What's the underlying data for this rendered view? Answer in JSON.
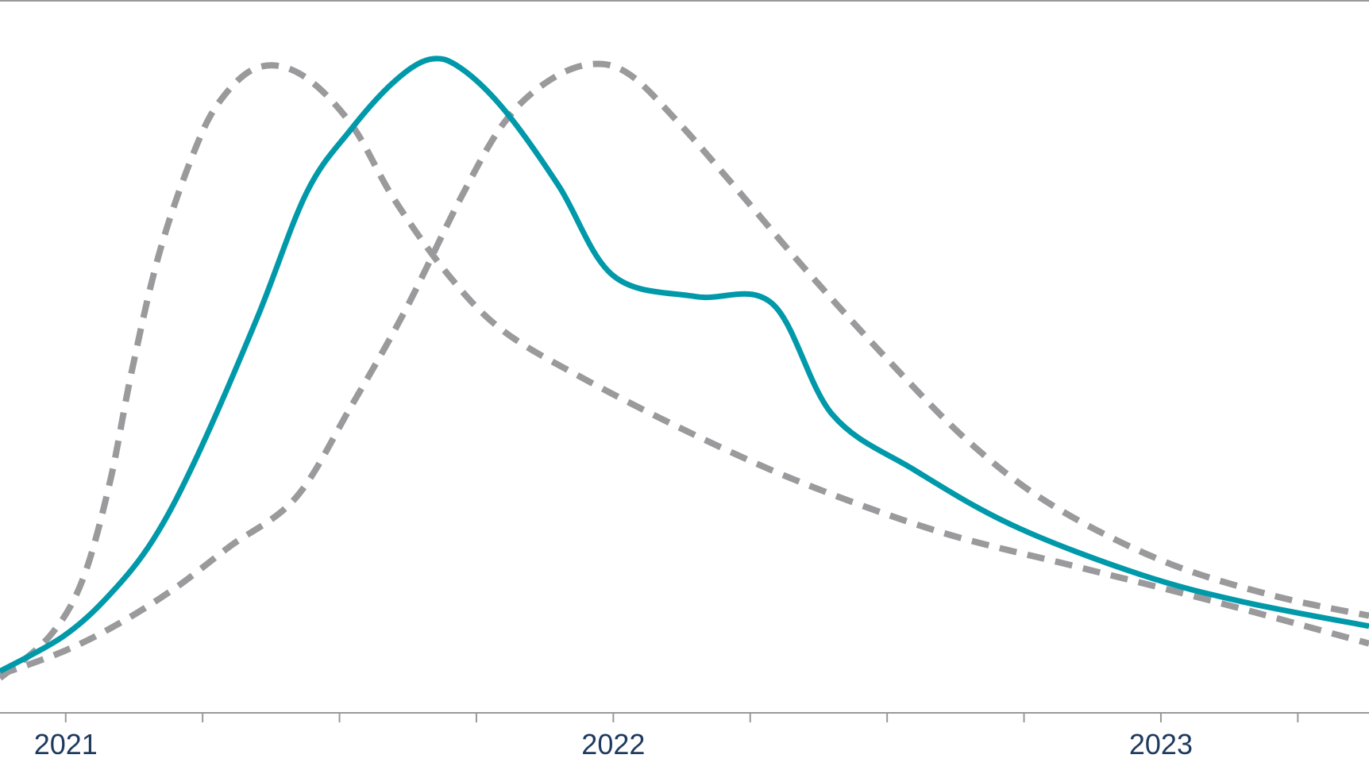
{
  "chart_data": {
    "type": "line",
    "title": "",
    "xlabel": "",
    "ylabel": "",
    "x_ticks": [
      {
        "x": 2021.0,
        "label": "2021"
      },
      {
        "x": 2021.25,
        "label": ""
      },
      {
        "x": 2021.5,
        "label": ""
      },
      {
        "x": 2021.75,
        "label": ""
      },
      {
        "x": 2022.0,
        "label": "2022"
      },
      {
        "x": 2022.25,
        "label": ""
      },
      {
        "x": 2022.5,
        "label": ""
      },
      {
        "x": 2022.75,
        "label": ""
      },
      {
        "x": 2023.0,
        "label": "2023"
      },
      {
        "x": 2023.25,
        "label": ""
      }
    ],
    "xlim": [
      2020.88,
      2023.38
    ],
    "ylim": [
      0,
      100
    ],
    "grid": false,
    "legend": "none",
    "colors": {
      "axis": "#999999",
      "tick_label": "#1f3a5f",
      "central": "#0099aa",
      "scenario": "#9a9a9c"
    },
    "series": [
      {
        "style": "solid",
        "points": [
          [
            2020.88,
            6
          ],
          [
            2020.995,
            11
          ],
          [
            2021.08,
            17
          ],
          [
            2021.16,
            25
          ],
          [
            2021.24,
            37
          ],
          [
            2021.35,
            57
          ],
          [
            2021.44,
            75
          ],
          [
            2021.52,
            84
          ],
          [
            2021.6,
            91
          ],
          [
            2021.665,
            94.2
          ],
          [
            2021.72,
            93
          ],
          [
            2021.8,
            87
          ],
          [
            2021.9,
            76
          ],
          [
            2022.0,
            63
          ],
          [
            2022.15,
            60
          ],
          [
            2022.29,
            59
          ],
          [
            2022.4,
            43
          ],
          [
            2022.55,
            35
          ],
          [
            2022.73,
            27
          ],
          [
            2022.96,
            20
          ],
          [
            2023.15,
            16
          ],
          [
            2023.38,
            12.5
          ]
        ]
      },
      {
        "style": "dashed",
        "points": [
          [
            2020.88,
            5
          ],
          [
            2020.97,
            11
          ],
          [
            2021.03,
            19
          ],
          [
            2021.08,
            33
          ],
          [
            2021.12,
            49
          ],
          [
            2021.17,
            66
          ],
          [
            2021.23,
            80
          ],
          [
            2021.28,
            88
          ],
          [
            2021.35,
            93
          ],
          [
            2021.43,
            92
          ],
          [
            2021.52,
            85
          ],
          [
            2021.6,
            74
          ],
          [
            2021.7,
            63
          ],
          [
            2021.8,
            55
          ],
          [
            2021.95,
            48
          ],
          [
            2022.15,
            40
          ],
          [
            2022.35,
            33
          ],
          [
            2022.6,
            26
          ],
          [
            2022.85,
            21
          ],
          [
            2023.1,
            16
          ],
          [
            2023.38,
            10
          ]
        ]
      },
      {
        "style": "dashed",
        "points": [
          [
            2020.88,
            5.5
          ],
          [
            2021.0,
            9
          ],
          [
            2021.1,
            13
          ],
          [
            2021.2,
            18
          ],
          [
            2021.3,
            24
          ],
          [
            2021.42,
            31
          ],
          [
            2021.52,
            44
          ],
          [
            2021.62,
            58
          ],
          [
            2021.72,
            74
          ],
          [
            2021.8,
            85
          ],
          [
            2021.88,
            91
          ],
          [
            2021.96,
            93.5
          ],
          [
            2022.03,
            92
          ],
          [
            2022.12,
            85
          ],
          [
            2022.22,
            76
          ],
          [
            2022.35,
            64
          ],
          [
            2022.5,
            51
          ],
          [
            2022.65,
            39
          ],
          [
            2022.8,
            30
          ],
          [
            2023.0,
            22
          ],
          [
            2023.2,
            17
          ],
          [
            2023.38,
            14
          ]
        ]
      }
    ]
  }
}
